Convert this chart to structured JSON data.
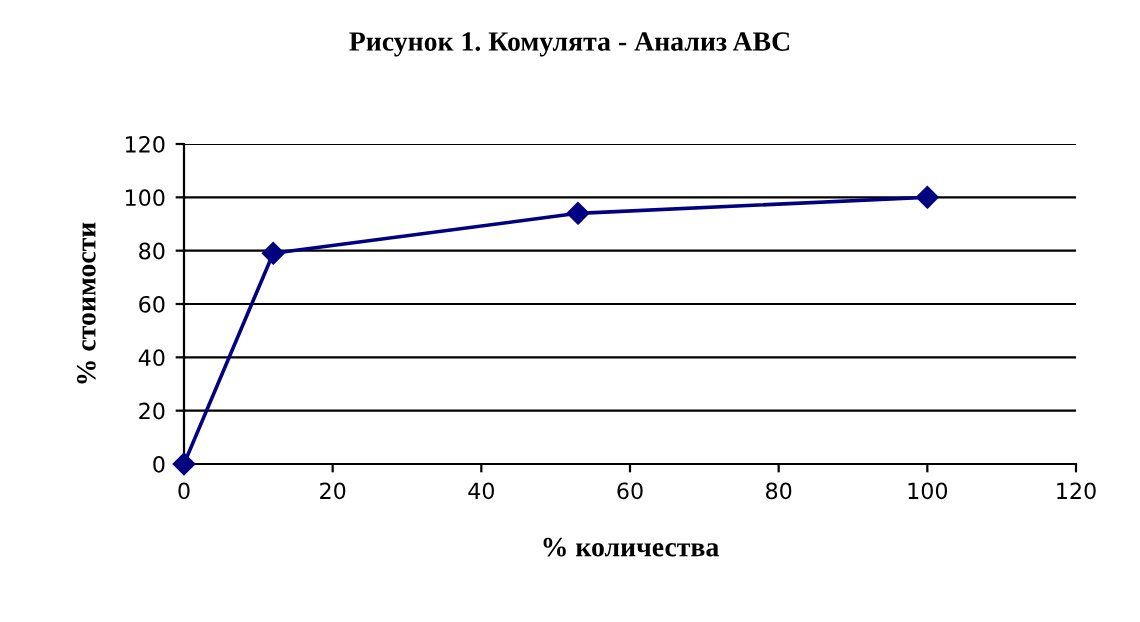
{
  "chart_data": {
    "type": "line",
    "title": "Рисунок 1. Комулята - Анализ ABC",
    "xlabel": "% количества",
    "ylabel": "% стоимости",
    "x": [
      0,
      12,
      53,
      100
    ],
    "series": [
      {
        "color": "#000080",
        "values": [
          0,
          79,
          94,
          100
        ]
      }
    ],
    "xlim": [
      0,
      120
    ],
    "xticks": [
      0,
      20,
      40,
      60,
      80,
      100,
      120
    ],
    "ylim": [
      0,
      120
    ],
    "yticks": [
      0,
      20,
      40,
      60,
      80,
      100,
      120
    ],
    "grid": "y",
    "marker": "diamond",
    "line_style": "solid"
  }
}
